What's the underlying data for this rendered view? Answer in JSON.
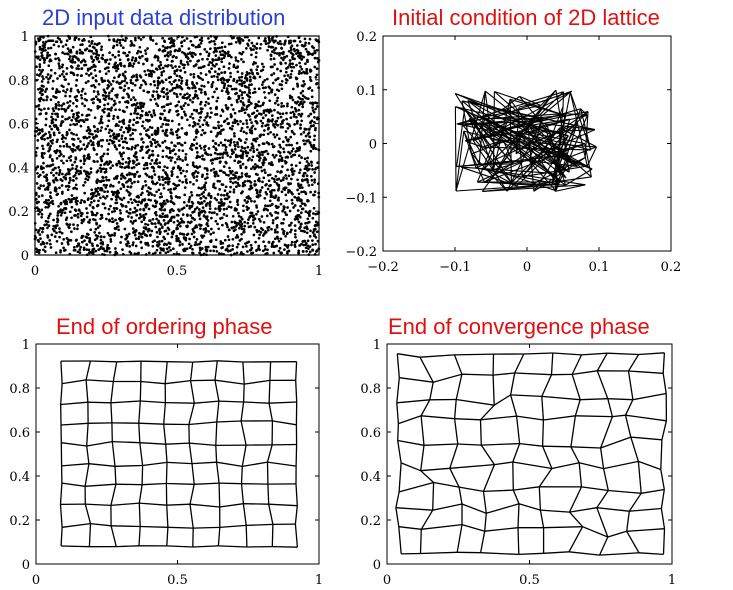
{
  "figure": {
    "panels": [
      {
        "title": "2D input data distribution",
        "title_color": "#2a3fd6",
        "x_ticks": [
          "0",
          "0.5",
          "1"
        ],
        "y_ticks": [
          "0",
          "0.2",
          "0.4",
          "0.6",
          "0.8",
          "1"
        ]
      },
      {
        "title": "Initial condition of 2D lattice",
        "title_color": "#e01010",
        "x_ticks": [
          "−0.2",
          "−0.1",
          "0",
          "0.1",
          "0.2"
        ],
        "y_ticks": [
          "−0.2",
          "−0.1",
          "0",
          "0.1",
          "0.2"
        ]
      },
      {
        "title": "End of ordering phase",
        "title_color": "#e01010",
        "x_ticks": [
          "0",
          "0.5",
          "1"
        ],
        "y_ticks": [
          "0",
          "0.2",
          "0.4",
          "0.6",
          "0.8",
          "1"
        ]
      },
      {
        "title": "End of convergence phase",
        "title_color": "#e01010",
        "x_ticks": [
          "0",
          "0.5",
          "1"
        ],
        "y_ticks": [
          "0",
          "0.2",
          "0.4",
          "0.6",
          "0.8",
          "1"
        ]
      }
    ]
  },
  "chart_data": [
    {
      "type": "scatter",
      "title": "2D input data distribution",
      "xlim": [
        0,
        1
      ],
      "ylim": [
        0,
        1
      ],
      "x_ticks": [
        0,
        0.5,
        1
      ],
      "y_ticks": [
        0,
        0.2,
        0.4,
        0.6,
        0.8,
        1
      ],
      "distribution": "uniform random points filling the unit square"
    },
    {
      "type": "line",
      "title": "Initial condition of 2D lattice",
      "xlim": [
        -0.2,
        0.2
      ],
      "ylim": [
        -0.2,
        0.2
      ],
      "x_ticks": [
        -0.2,
        -0.1,
        0,
        0.1,
        0.2
      ],
      "y_ticks": [
        -0.2,
        -0.1,
        0,
        0.1,
        0.2
      ],
      "lattice_extent": {
        "x": [
          -0.1,
          0.1
        ],
        "y": [
          -0.09,
          0.1
        ]
      },
      "lattice_state": "random tangled web of connected nodes"
    },
    {
      "type": "line",
      "title": "End of ordering phase",
      "xlim": [
        0,
        1
      ],
      "ylim": [
        0,
        1
      ],
      "x_ticks": [
        0,
        0.5,
        1
      ],
      "y_ticks": [
        0,
        0.2,
        0.4,
        0.6,
        0.8,
        1
      ],
      "lattice_extent": {
        "x": [
          0.09,
          0.92
        ],
        "y": [
          0.08,
          0.92
        ]
      },
      "lattice_state": "nearly regular rectangular grid"
    },
    {
      "type": "line",
      "title": "End of convergence phase",
      "xlim": [
        0,
        1
      ],
      "ylim": [
        0,
        1
      ],
      "x_ticks": [
        0,
        0.5,
        1
      ],
      "y_ticks": [
        0,
        0.2,
        0.4,
        0.6,
        0.8,
        1
      ],
      "lattice_extent": {
        "x": [
          0.04,
          0.97
        ],
        "y": [
          0.05,
          0.95
        ]
      },
      "lattice_state": "grid spread across the unit square with local distortions"
    }
  ]
}
